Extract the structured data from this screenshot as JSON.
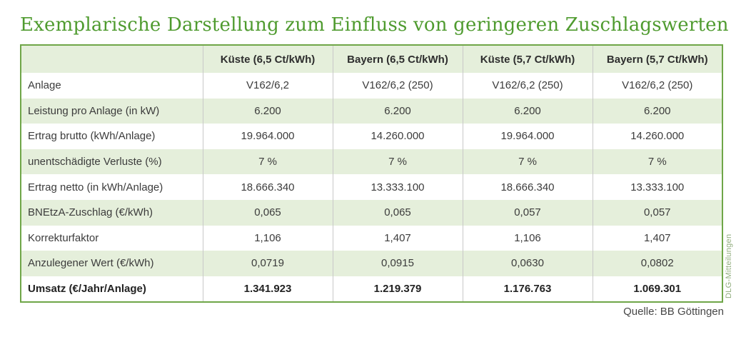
{
  "title": "Exemplarische Darstellung zum Einfluss von geringeren Zuschlagswerten",
  "source": "Quelle: BB Göttingen",
  "watermark": "DLG-Mitteilungen",
  "colors": {
    "title_green": "#4f9b2f",
    "table_border_green": "#6fa648",
    "row_stripe_green": "#e5efdb",
    "column_divider_gray": "#c8c8c8",
    "body_text": "#3c3c3c",
    "watermark_green": "#90ad7d",
    "source_gray": "#474747"
  },
  "table": {
    "columns": [
      "",
      "Küste (6,5 Ct/kWh)",
      "Bayern (6,5 Ct/kWh)",
      "Küste (5,7 Ct/kWh)",
      "Bayern (5,7 Ct/kWh)"
    ],
    "rows": [
      {
        "label": "Anlage",
        "values": [
          "V162/6,2",
          "V162/6,2 (250)",
          "V162/6,2 (250)",
          "V162/6,2 (250)"
        ],
        "bold": false
      },
      {
        "label": "Leistung pro Anlage (in kW)",
        "values": [
          "6.200",
          "6.200",
          "6.200",
          "6.200"
        ],
        "bold": false
      },
      {
        "label": "Ertrag brutto (kWh/Anlage)",
        "values": [
          "19.964.000",
          "14.260.000",
          "19.964.000",
          "14.260.000"
        ],
        "bold": false
      },
      {
        "label": "unentschädigte Verluste (%)",
        "values": [
          "7 %",
          "7 %",
          "7 %",
          "7 %"
        ],
        "bold": false
      },
      {
        "label": "Ertrag netto (in kWh/Anlage)",
        "values": [
          "18.666.340",
          "13.333.100",
          "18.666.340",
          "13.333.100"
        ],
        "bold": false
      },
      {
        "label": "BNEtzA-Zuschlag (€/kWh)",
        "values": [
          "0,065",
          "0,065",
          "0,057",
          "0,057"
        ],
        "bold": false
      },
      {
        "label": "Korrekturfaktor",
        "values": [
          "1,106",
          "1,407",
          "1,106",
          "1,407"
        ],
        "bold": false
      },
      {
        "label": "Anzulegener Wert (€/kWh)",
        "values": [
          "0,0719",
          "0,0915",
          "0,0630",
          "0,0802"
        ],
        "bold": false
      },
      {
        "label": "Umsatz (€/Jahr/Anlage)",
        "values": [
          "1.341.923",
          "1.219.379",
          "1.176.763",
          "1.069.301"
        ],
        "bold": true
      }
    ]
  }
}
